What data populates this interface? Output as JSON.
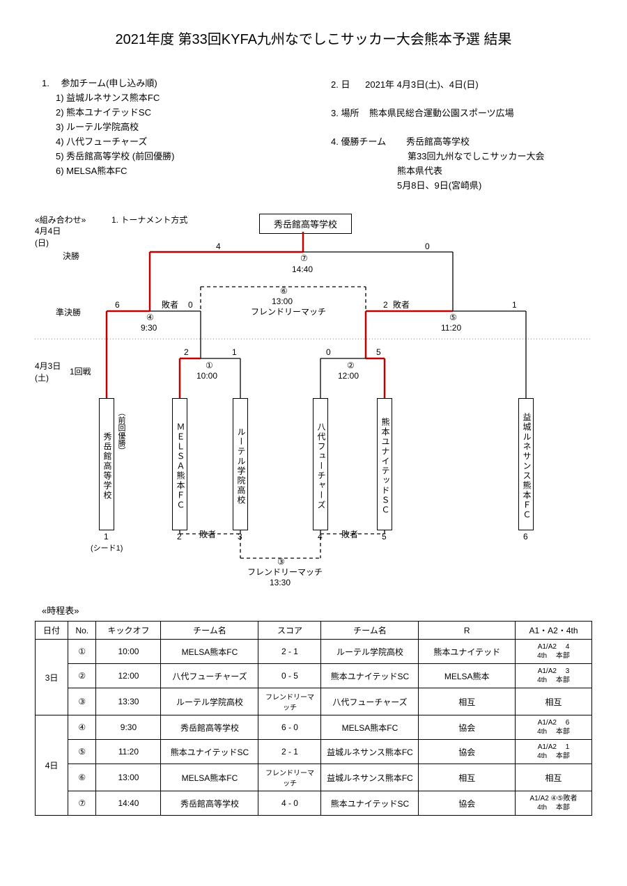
{
  "title": "2021年度  第33回KYFA九州なでしこサッカー大会熊本予選  結果",
  "info_left": {
    "heading": "1.　  参加チーム(申し込み順)",
    "teams": [
      "1)   益城ルネサンス熊本FC",
      "2)   熊本ユナイテッドSC",
      "3)   ルーテル学院高校",
      "4)   八代フューチャーズ",
      "5)   秀岳館高等学校  (前回優勝)",
      "6)   MELSA熊本FC"
    ]
  },
  "info_right": {
    "date_label": "2.  日",
    "date_value": "2021年  4月3日(土)、4日(日)",
    "place_label": "3.  場所",
    "place_value": "熊本県民総合運動公園スポーツ広場",
    "champ_label": "4.  優勝チーム",
    "champ_value": "秀岳館高等学校",
    "champ_note1": "第33回九州なでしこサッカー大会",
    "champ_note2": "熊本県代表",
    "champ_note3": "5月8日、9日(宮崎県)"
  },
  "bracket": {
    "combo_label": "«組み合わせ»",
    "date2": "4月4日\n(日)",
    "date1": "4月3日\n(土)",
    "tournament_label": "1. トーナメント方式",
    "final_label": "決勝",
    "semi_label": "準決勝",
    "r1_label": "1回戦",
    "champion": "秀岳館高等学校",
    "final_score_l": "4",
    "final_score_r": "0",
    "final_match": "⑦",
    "final_time": "14:40",
    "friendly6": "⑥\n13:00\nフレンドリーマッチ",
    "semi_l_score_l": "6",
    "semi_l_score_r": "0",
    "semi_l_match": "④",
    "semi_l_time": "9:30",
    "semi_l_loser": "敗者",
    "semi_r_score_l": "2",
    "semi_r_score_r": "1",
    "semi_r_match": "⑤",
    "semi_r_time": "11:20",
    "semi_r_loser": "敗者",
    "r1_1_score_l": "2",
    "r1_1_score_r": "1",
    "r1_1_match": "①",
    "r1_1_time": "10:00",
    "r1_2_score_l": "0",
    "r1_2_score_r": "5",
    "r1_2_match": "②",
    "r1_2_time": "12:00",
    "friendly3": "③\nフレンドリーマッチ\n13:30",
    "loser_low_l": "敗者",
    "loser_low_r": "敗者",
    "teams": [
      {
        "name": "秀岳館高等学校",
        "num": "1",
        "seed": "(シード1)",
        "kakko": "（前回優勝）"
      },
      {
        "name": "ＭＥＬＳＡ熊本ＦＣ",
        "num": "2"
      },
      {
        "name": "ルーテル学院高校",
        "num": "3"
      },
      {
        "name": "八代フューチャーズ",
        "num": "4"
      },
      {
        "name": "熊本ユナイテッドＳＣ",
        "num": "5"
      },
      {
        "name": "益城ルネサンス熊本ＦＣ",
        "num": "6"
      }
    ],
    "colors": {
      "win": "#c00000",
      "normal": "#000000"
    }
  },
  "schedule": {
    "heading": "«時程表»",
    "columns": [
      "日付",
      "No.",
      "キックオフ",
      "チーム名",
      "スコア",
      "チーム名",
      "R",
      "A1・A2・4th"
    ],
    "rows": [
      {
        "date": "3日",
        "no": "①",
        "ko": "10:00",
        "t1": "MELSA熊本FC",
        "score": "2  -  1",
        "t2": "ルーテル学院高校",
        "r": "熊本ユナイテッド",
        "a": "A1/A2　 4\n4th　 本部"
      },
      {
        "date": "",
        "no": "②",
        "ko": "12:00",
        "t1": "八代フューチャーズ",
        "score": "0  -  5",
        "t2": "熊本ユナイテッドSC",
        "r": "MELSA熊本",
        "a": "A1/A2　 3\n4th　 本部"
      },
      {
        "date": "",
        "no": "③",
        "ko": "13:30",
        "t1": "ルーテル学院高校",
        "score": "フレンドリーマッチ",
        "t2": "八代フューチャーズ",
        "r": "相互",
        "a": "相互"
      },
      {
        "date": "4日",
        "no": "④",
        "ko": "9:30",
        "t1": "秀岳館高等学校",
        "score": "6  -  0",
        "t2": "MELSA熊本FC",
        "r": "協会",
        "a": "A1/A2　 6\n4th　 本部"
      },
      {
        "date": "",
        "no": "⑤",
        "ko": "11:20",
        "t1": "熊本ユナイテッドSC",
        "score": "2  -  1",
        "t2": "益城ルネサンス熊本FC",
        "r": "協会",
        "a": "A1/A2　 1\n4th　 本部"
      },
      {
        "date": "",
        "no": "⑥",
        "ko": "13:00",
        "t1": "MELSA熊本FC",
        "score": "フレンドリーマッチ",
        "t2": "益城ルネサンス熊本FC",
        "r": "相互",
        "a": "相互"
      },
      {
        "date": "",
        "no": "⑦",
        "ko": "14:40",
        "t1": "秀岳館高等学校",
        "score": "4  -  0",
        "t2": "熊本ユナイテッドSC",
        "r": "協会",
        "a": "A1/A2 ④⑤敗者\n4th　 本部"
      }
    ]
  }
}
